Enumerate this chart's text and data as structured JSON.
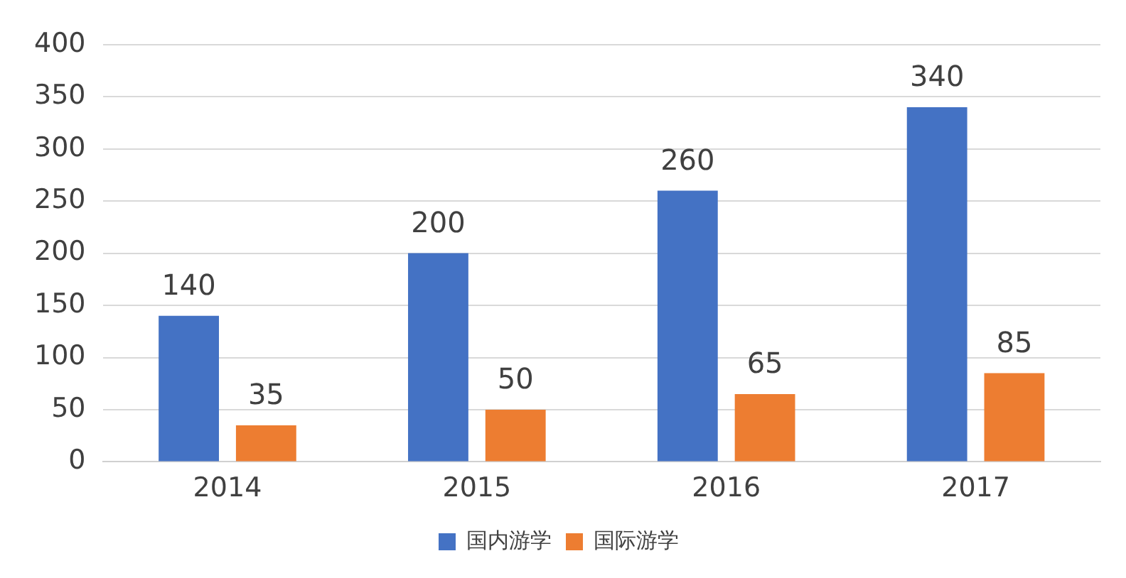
{
  "chart_data": {
    "type": "bar",
    "categories": [
      "2014",
      "2015",
      "2016",
      "2017"
    ],
    "series": [
      {
        "name": "国内游学",
        "color": "#4472c4",
        "values": [
          140,
          200,
          260,
          340
        ]
      },
      {
        "name": "国际游学",
        "color": "#ed7d31",
        "values": [
          35,
          50,
          65,
          85
        ]
      }
    ],
    "ylim": [
      0,
      400
    ],
    "yticks": [
      0,
      50,
      100,
      150,
      200,
      250,
      300,
      350,
      400
    ],
    "grid": "y",
    "legend": "bottom",
    "data_labels": true
  }
}
